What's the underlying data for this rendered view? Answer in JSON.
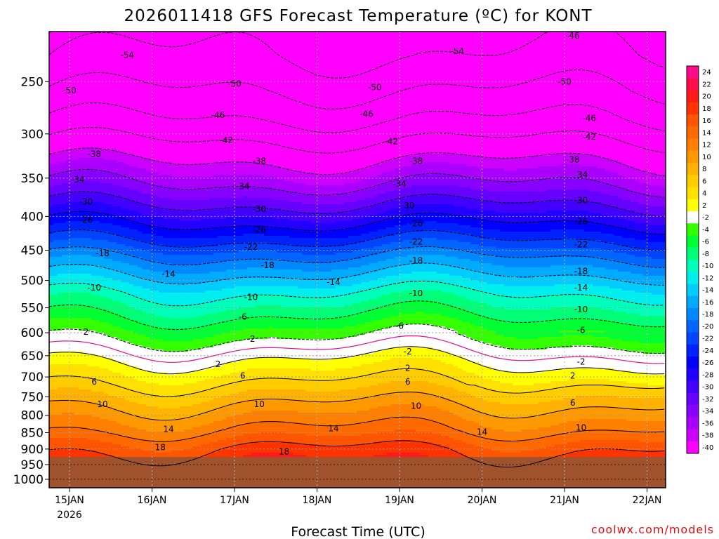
{
  "chart_data": {
    "type": "heatmap",
    "title": "2026011418 GFS Forecast Temperature (ºC) for KONT",
    "xlabel": "Forecast Time (UTC)",
    "ylabel": "",
    "credit": "coolwx.com/models",
    "x_ticks": [
      "15JAN",
      "16JAN",
      "17JAN",
      "18JAN",
      "19JAN",
      "20JAN",
      "21JAN",
      "22JAN"
    ],
    "x_year": "2026",
    "y_ticks": [
      250,
      300,
      350,
      400,
      450,
      500,
      550,
      600,
      650,
      700,
      750,
      800,
      850,
      900,
      950,
      1000
    ],
    "y_scale": "log-pressure",
    "y_range": [
      210,
      1030
    ],
    "ground_pressure": 925,
    "grid": true,
    "colorbar": {
      "position": "right",
      "levels": [
        24,
        22,
        20,
        18,
        16,
        14,
        12,
        10,
        8,
        6,
        4,
        2,
        -2,
        -4,
        -6,
        -8,
        -10,
        -12,
        -14,
        -16,
        -18,
        -20,
        -22,
        -24,
        -26,
        -28,
        -30,
        -32,
        -34,
        -36,
        -38,
        -40
      ],
      "colors": [
        "#ff0a8c",
        "#ff0d4d",
        "#ff1a1a",
        "#ff3300",
        "#ff5500",
        "#ff6a00",
        "#ff8000",
        "#ff9900",
        "#ffb300",
        "#ffcc00",
        "#ffe000",
        "#ffff00",
        "#ffffff",
        "#33ff00",
        "#00ff33",
        "#00ff77",
        "#00ffbb",
        "#00eeee",
        "#00ccff",
        "#00aaff",
        "#0088ff",
        "#0066ff",
        "#0044ff",
        "#0022ff",
        "#0000ff",
        "#2200ff",
        "#4400ff",
        "#6600ff",
        "#8800ff",
        "#aa00ff",
        "#cc00ff",
        "#ff00ff"
      ]
    },
    "contours": [
      {
        "value": -54,
        "pressure": 228
      },
      {
        "value": -50,
        "pressure": 258
      },
      {
        "value": -46,
        "pressure": 285
      },
      {
        "value": -42,
        "pressure": 307
      },
      {
        "value": -38,
        "pressure": 330
      },
      {
        "value": -34,
        "pressure": 358
      },
      {
        "value": -30,
        "pressure": 384
      },
      {
        "value": -26,
        "pressure": 410
      },
      {
        "value": -22,
        "pressure": 435
      },
      {
        "value": -18,
        "pressure": 460
      },
      {
        "value": -14,
        "pressure": 490
      },
      {
        "value": -10,
        "pressure": 522
      },
      {
        "value": -6,
        "pressure": 566
      },
      {
        "value": -2,
        "pressure": 612
      },
      {
        "value": 2,
        "pressure": 658
      },
      {
        "value": 6,
        "pressure": 712
      },
      {
        "value": 10,
        "pressure": 770
      },
      {
        "value": 14,
        "pressure": 840
      },
      {
        "value": 18,
        "pressure": 900
      }
    ],
    "isotherm_0": {
      "value": 0,
      "pressure": 630
    },
    "contour_labels": [
      {
        "text": "-54",
        "day": 0.7,
        "p": 228
      },
      {
        "text": "-54",
        "day": 4.7,
        "p": 225
      },
      {
        "text": "-50",
        "day": 0.0,
        "p": 258
      },
      {
        "text": "-50",
        "day": 2.0,
        "p": 252
      },
      {
        "text": "-50",
        "day": 3.7,
        "p": 255
      },
      {
        "text": "-50",
        "day": 6.0,
        "p": 250
      },
      {
        "text": "-46",
        "day": 1.8,
        "p": 281
      },
      {
        "text": "-46",
        "day": 3.6,
        "p": 280
      },
      {
        "text": "-46",
        "day": 6.3,
        "p": 284
      },
      {
        "text": "-46",
        "day": 6.1,
        "p": 213
      },
      {
        "text": "-42",
        "day": 1.9,
        "p": 307
      },
      {
        "text": "-42",
        "day": 3.9,
        "p": 308
      },
      {
        "text": "-42",
        "day": 6.3,
        "p": 303
      },
      {
        "text": "-38",
        "day": 0.3,
        "p": 322
      },
      {
        "text": "-38",
        "day": 2.3,
        "p": 330
      },
      {
        "text": "-38",
        "day": 4.2,
        "p": 330
      },
      {
        "text": "-38",
        "day": 6.1,
        "p": 328
      },
      {
        "text": "-34",
        "day": 0.1,
        "p": 352
      },
      {
        "text": "-34",
        "day": 2.1,
        "p": 360
      },
      {
        "text": "-34",
        "day": 4.0,
        "p": 357
      },
      {
        "text": "-34",
        "day": 6.2,
        "p": 346
      },
      {
        "text": "-30",
        "day": 0.2,
        "p": 380
      },
      {
        "text": "-30",
        "day": 2.3,
        "p": 390
      },
      {
        "text": "-30",
        "day": 4.1,
        "p": 385
      },
      {
        "text": "-30",
        "day": 6.2,
        "p": 378
      },
      {
        "text": "-26",
        "day": 0.2,
        "p": 405
      },
      {
        "text": "-26",
        "day": 2.3,
        "p": 419
      },
      {
        "text": "-26",
        "day": 4.2,
        "p": 410
      },
      {
        "text": "-26",
        "day": 6.2,
        "p": 407
      },
      {
        "text": "-22",
        "day": 2.2,
        "p": 445
      },
      {
        "text": "-22",
        "day": 4.2,
        "p": 437
      },
      {
        "text": "-22",
        "day": 6.2,
        "p": 441
      },
      {
        "text": "-18",
        "day": 0.4,
        "p": 455
      },
      {
        "text": "-18",
        "day": 2.4,
        "p": 474
      },
      {
        "text": "-18",
        "day": 4.2,
        "p": 467
      },
      {
        "text": "-18",
        "day": 6.2,
        "p": 484
      },
      {
        "text": "-14",
        "day": 1.2,
        "p": 489
      },
      {
        "text": "-14",
        "day": 3.2,
        "p": 503
      },
      {
        "text": "-14",
        "day": 6.2,
        "p": 513
      },
      {
        "text": "-10",
        "day": 0.3,
        "p": 513
      },
      {
        "text": "-10",
        "day": 2.2,
        "p": 530
      },
      {
        "text": "-10",
        "day": 4.2,
        "p": 523
      },
      {
        "text": "-10",
        "day": 6.2,
        "p": 553
      },
      {
        "text": "-6",
        "day": 2.1,
        "p": 568
      },
      {
        "text": "-6",
        "day": 4.0,
        "p": 586
      },
      {
        "text": "-6",
        "day": 6.2,
        "p": 595
      },
      {
        "text": "-2",
        "day": 2.2,
        "p": 613
      },
      {
        "text": "-2",
        "day": 4.1,
        "p": 641
      },
      {
        "text": "-2",
        "day": 6.2,
        "p": 664
      },
      {
        "text": "2",
        "day": 0.2,
        "p": 598
      },
      {
        "text": "2",
        "day": 1.8,
        "p": 670
      },
      {
        "text": "2",
        "day": 4.1,
        "p": 679
      },
      {
        "text": "2",
        "day": 6.1,
        "p": 697
      },
      {
        "text": "6",
        "day": 0.3,
        "p": 712
      },
      {
        "text": "6",
        "day": 2.1,
        "p": 697
      },
      {
        "text": "6",
        "day": 4.1,
        "p": 712
      },
      {
        "text": "6",
        "day": 6.1,
        "p": 766
      },
      {
        "text": "10",
        "day": 0.4,
        "p": 770
      },
      {
        "text": "10",
        "day": 2.3,
        "p": 770
      },
      {
        "text": "10",
        "day": 4.2,
        "p": 775
      },
      {
        "text": "10",
        "day": 6.2,
        "p": 836
      },
      {
        "text": "14",
        "day": 1.2,
        "p": 840
      },
      {
        "text": "14",
        "day": 3.2,
        "p": 838
      },
      {
        "text": "14",
        "day": 5.0,
        "p": 848
      },
      {
        "text": "18",
        "day": 1.1,
        "p": 895
      },
      {
        "text": "18",
        "day": 2.6,
        "p": 908
      }
    ]
  }
}
